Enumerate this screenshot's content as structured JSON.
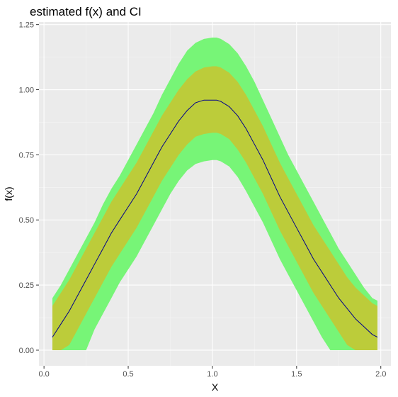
{
  "chart_data": {
    "type": "area",
    "title": "estimated f(x) and CI",
    "xlabel": "X",
    "ylabel": "f(x)",
    "xlim": [
      -0.03,
      2.06
    ],
    "ylim": [
      -0.06,
      1.26
    ],
    "x_ticks": [
      0.0,
      0.5,
      1.0,
      1.5,
      2.0
    ],
    "x_tick_labels": [
      "0.0",
      "0.5",
      "1.0",
      "1.5",
      "2.0"
    ],
    "y_ticks": [
      0.0,
      0.25,
      0.5,
      0.75,
      1.0,
      1.25
    ],
    "y_tick_labels": [
      "0.00",
      "0.25",
      "0.50",
      "0.75",
      "1.00",
      "1.25"
    ],
    "grid": true,
    "legend": "none",
    "colors": {
      "panel": "#ebebeb",
      "grid_major": "#ffffff",
      "grid_minor": "#f5f5f5",
      "outer_band": "#77f577",
      "inner_band": "#bccc3a",
      "line": "#00008b",
      "tick": "#333333"
    },
    "x": [
      0.05,
      0.1,
      0.15,
      0.2,
      0.25,
      0.3,
      0.35,
      0.4,
      0.45,
      0.5,
      0.55,
      0.6,
      0.65,
      0.7,
      0.75,
      0.8,
      0.85,
      0.9,
      0.95,
      1.0,
      1.025,
      1.05,
      1.1,
      1.15,
      1.2,
      1.25,
      1.3,
      1.35,
      1.4,
      1.45,
      1.5,
      1.55,
      1.6,
      1.65,
      1.7,
      1.75,
      1.8,
      1.85,
      1.9,
      1.95,
      1.98
    ],
    "series": [
      {
        "role": "estimate",
        "values": [
          0.05,
          0.1,
          0.15,
          0.21,
          0.27,
          0.33,
          0.39,
          0.45,
          0.5,
          0.55,
          0.6,
          0.66,
          0.72,
          0.78,
          0.83,
          0.88,
          0.92,
          0.95,
          0.96,
          0.96,
          0.96,
          0.955,
          0.935,
          0.9,
          0.85,
          0.79,
          0.73,
          0.66,
          0.59,
          0.53,
          0.47,
          0.41,
          0.35,
          0.3,
          0.25,
          0.2,
          0.16,
          0.12,
          0.09,
          0.06,
          0.05
        ]
      },
      {
        "role": "inner_band_upper",
        "values": [
          0.17,
          0.22,
          0.27,
          0.33,
          0.39,
          0.45,
          0.51,
          0.57,
          0.62,
          0.67,
          0.72,
          0.78,
          0.84,
          0.9,
          0.95,
          1.0,
          1.04,
          1.07,
          1.085,
          1.09,
          1.09,
          1.085,
          1.065,
          1.03,
          0.98,
          0.92,
          0.86,
          0.79,
          0.72,
          0.66,
          0.6,
          0.54,
          0.48,
          0.43,
          0.38,
          0.33,
          0.28,
          0.24,
          0.21,
          0.18,
          0.17
        ]
      },
      {
        "role": "inner_band_lower",
        "values": [
          0.0,
          0.0,
          0.02,
          0.08,
          0.14,
          0.2,
          0.26,
          0.32,
          0.37,
          0.42,
          0.47,
          0.53,
          0.59,
          0.65,
          0.7,
          0.75,
          0.79,
          0.82,
          0.83,
          0.835,
          0.835,
          0.83,
          0.81,
          0.77,
          0.72,
          0.66,
          0.6,
          0.53,
          0.46,
          0.4,
          0.34,
          0.28,
          0.22,
          0.17,
          0.12,
          0.07,
          0.02,
          0.0,
          0.0,
          0.0,
          0.0
        ]
      },
      {
        "role": "outer_band_upper",
        "values": [
          0.2,
          0.25,
          0.31,
          0.37,
          0.43,
          0.49,
          0.56,
          0.62,
          0.67,
          0.73,
          0.79,
          0.85,
          0.91,
          0.98,
          1.04,
          1.1,
          1.15,
          1.18,
          1.195,
          1.2,
          1.2,
          1.195,
          1.175,
          1.14,
          1.09,
          1.03,
          0.96,
          0.89,
          0.82,
          0.75,
          0.69,
          0.63,
          0.57,
          0.51,
          0.45,
          0.39,
          0.34,
          0.29,
          0.24,
          0.2,
          0.19
        ]
      },
      {
        "role": "outer_band_lower",
        "values": [
          0.0,
          0.0,
          0.0,
          0.0,
          0.0,
          0.08,
          0.14,
          0.2,
          0.26,
          0.31,
          0.36,
          0.42,
          0.48,
          0.54,
          0.6,
          0.65,
          0.69,
          0.715,
          0.725,
          0.73,
          0.73,
          0.725,
          0.705,
          0.665,
          0.61,
          0.55,
          0.49,
          0.42,
          0.35,
          0.29,
          0.23,
          0.17,
          0.11,
          0.05,
          0.0,
          0.0,
          0.0,
          0.0,
          0.0,
          0.0,
          0.0
        ]
      }
    ]
  }
}
